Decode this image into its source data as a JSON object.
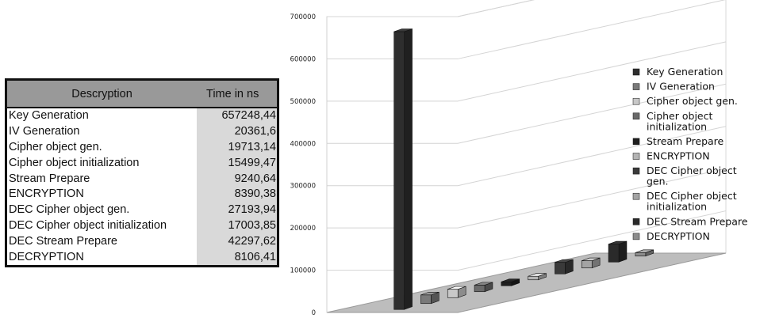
{
  "table": {
    "headers": [
      "Descryption",
      "Time in ns"
    ],
    "rows": [
      {
        "label": "Key Generation",
        "value": "657248,44"
      },
      {
        "label": "IV Generation",
        "value": "20361,6"
      },
      {
        "label": "Cipher object gen.",
        "value": "19713,14"
      },
      {
        "label": "Cipher object initialization",
        "value": "15499,47"
      },
      {
        "label": "Stream Prepare",
        "value": "9240,64"
      },
      {
        "label": "ENCRYPTION",
        "value": "8390,38"
      },
      {
        "label": "DEC Cipher object gen.",
        "value": "27193,94"
      },
      {
        "label": "DEC Cipher object initialization",
        "value": "17003,85"
      },
      {
        "label": "DEC Stream Prepare",
        "value": "42297,62"
      },
      {
        "label": "DECRYPTION",
        "value": "8106,41"
      }
    ]
  },
  "chart_data": {
    "type": "bar",
    "style": "3d-column",
    "categories": [
      "Key Generation",
      "IV Generation",
      "Cipher object gen.",
      "Cipher object initialization",
      "Stream Prepare",
      "ENCRYPTION",
      "DEC Cipher object gen.",
      "DEC Cipher object initialization",
      "DEC Stream Prepare",
      "DECRYPTION"
    ],
    "values": [
      657248.44,
      20361.6,
      19713.14,
      15499.47,
      9240.64,
      8390.38,
      27193.94,
      17003.85,
      42297.62,
      8106.41
    ],
    "series_colors": [
      "#2e2e2e",
      "#7a7a7a",
      "#c8c8c8",
      "#6a6a6a",
      "#1e1e1e",
      "#b4b4b4",
      "#3a3a3a",
      "#a4a4a4",
      "#2a2a2a",
      "#8c8c8c"
    ],
    "y_ticks": [
      "0",
      "100000",
      "200000",
      "300000",
      "400000",
      "500000",
      "600000",
      "700000"
    ],
    "ylim": [
      0,
      700000
    ],
    "legend": [
      [
        "Key Generation"
      ],
      [
        "IV Generation"
      ],
      [
        "Cipher object gen."
      ],
      [
        "Cipher object",
        "initialization"
      ],
      [
        "Stream Prepare"
      ],
      [
        "ENCRYPTION"
      ],
      [
        "DEC Cipher object",
        "gen."
      ],
      [
        "DEC Cipher object",
        "initialization"
      ],
      [
        "DEC Stream Prepare"
      ],
      [
        "DECRYPTION"
      ]
    ],
    "legend_position": "right",
    "grid": true,
    "floor_color": "#bdbdbd"
  }
}
